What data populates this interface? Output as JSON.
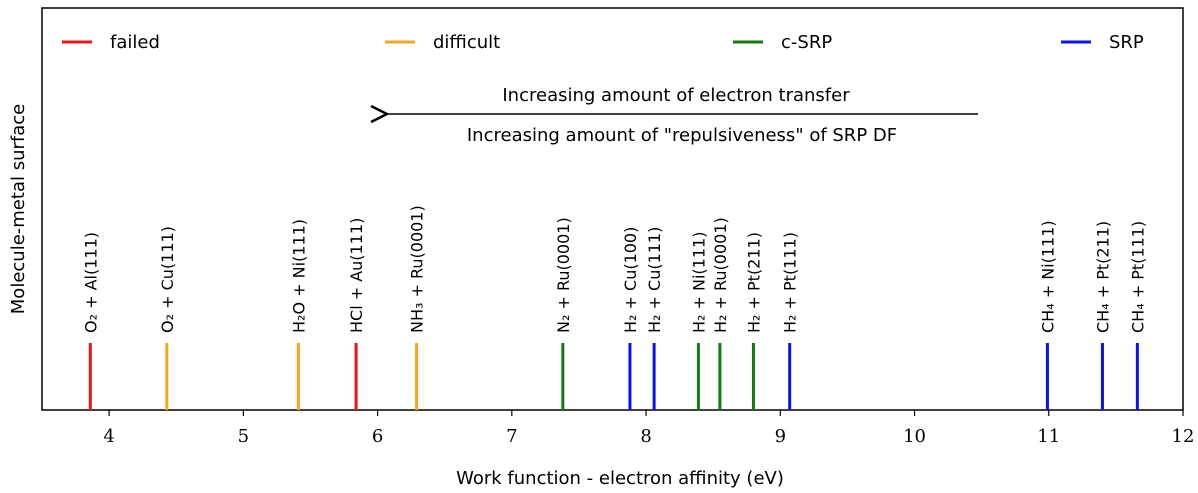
{
  "chart_data": {
    "type": "event",
    "xlabel": "Work function - electron affinity (eV)",
    "ylabel": "Molecule-metal surface",
    "annotations": [
      "Increasing amount of electron transfer",
      "Increasing amount of \"repulsiveness\" of SRP DF"
    ],
    "xlim": [
      3.5,
      12
    ],
    "xticks": [
      4,
      5,
      6,
      7,
      8,
      9,
      10,
      11,
      12
    ],
    "series": [
      {
        "name": "failed",
        "color": "#e8141a",
        "values": [
          3.86,
          5.84
        ],
        "labels": [
          "O₂ + Al(111)",
          "HCl + Au(111)"
        ]
      },
      {
        "name": "difficult",
        "color": "#f5a71c",
        "values": [
          4.43,
          5.41,
          6.29
        ],
        "labels": [
          "O₂ + Cu(111)",
          "H₂O + Ni(111)",
          "NH₃ + Ru(0001)"
        ]
      },
      {
        "name": "c-SRP",
        "color": "#117a11",
        "values": [
          7.38,
          8.39,
          8.55,
          8.8
        ],
        "labels": [
          "N₂ + Ru(0001)",
          "H₂ + Ni(111)",
          "H₂ + Ru(0001)",
          "H₂ + Pt(211)"
        ]
      },
      {
        "name": "SRP",
        "color": "#0a14e6",
        "values": [
          7.88,
          8.06,
          9.07,
          10.99,
          11.4,
          11.66
        ],
        "labels": [
          "H₂ + Cu(100)",
          "H₂ + Cu(111)",
          "H₂ + Pt(111)",
          "CH₄ + Ni(111)",
          "CH₄ + Pt(211)",
          "CH₄ + Pt(111)"
        ]
      }
    ]
  }
}
